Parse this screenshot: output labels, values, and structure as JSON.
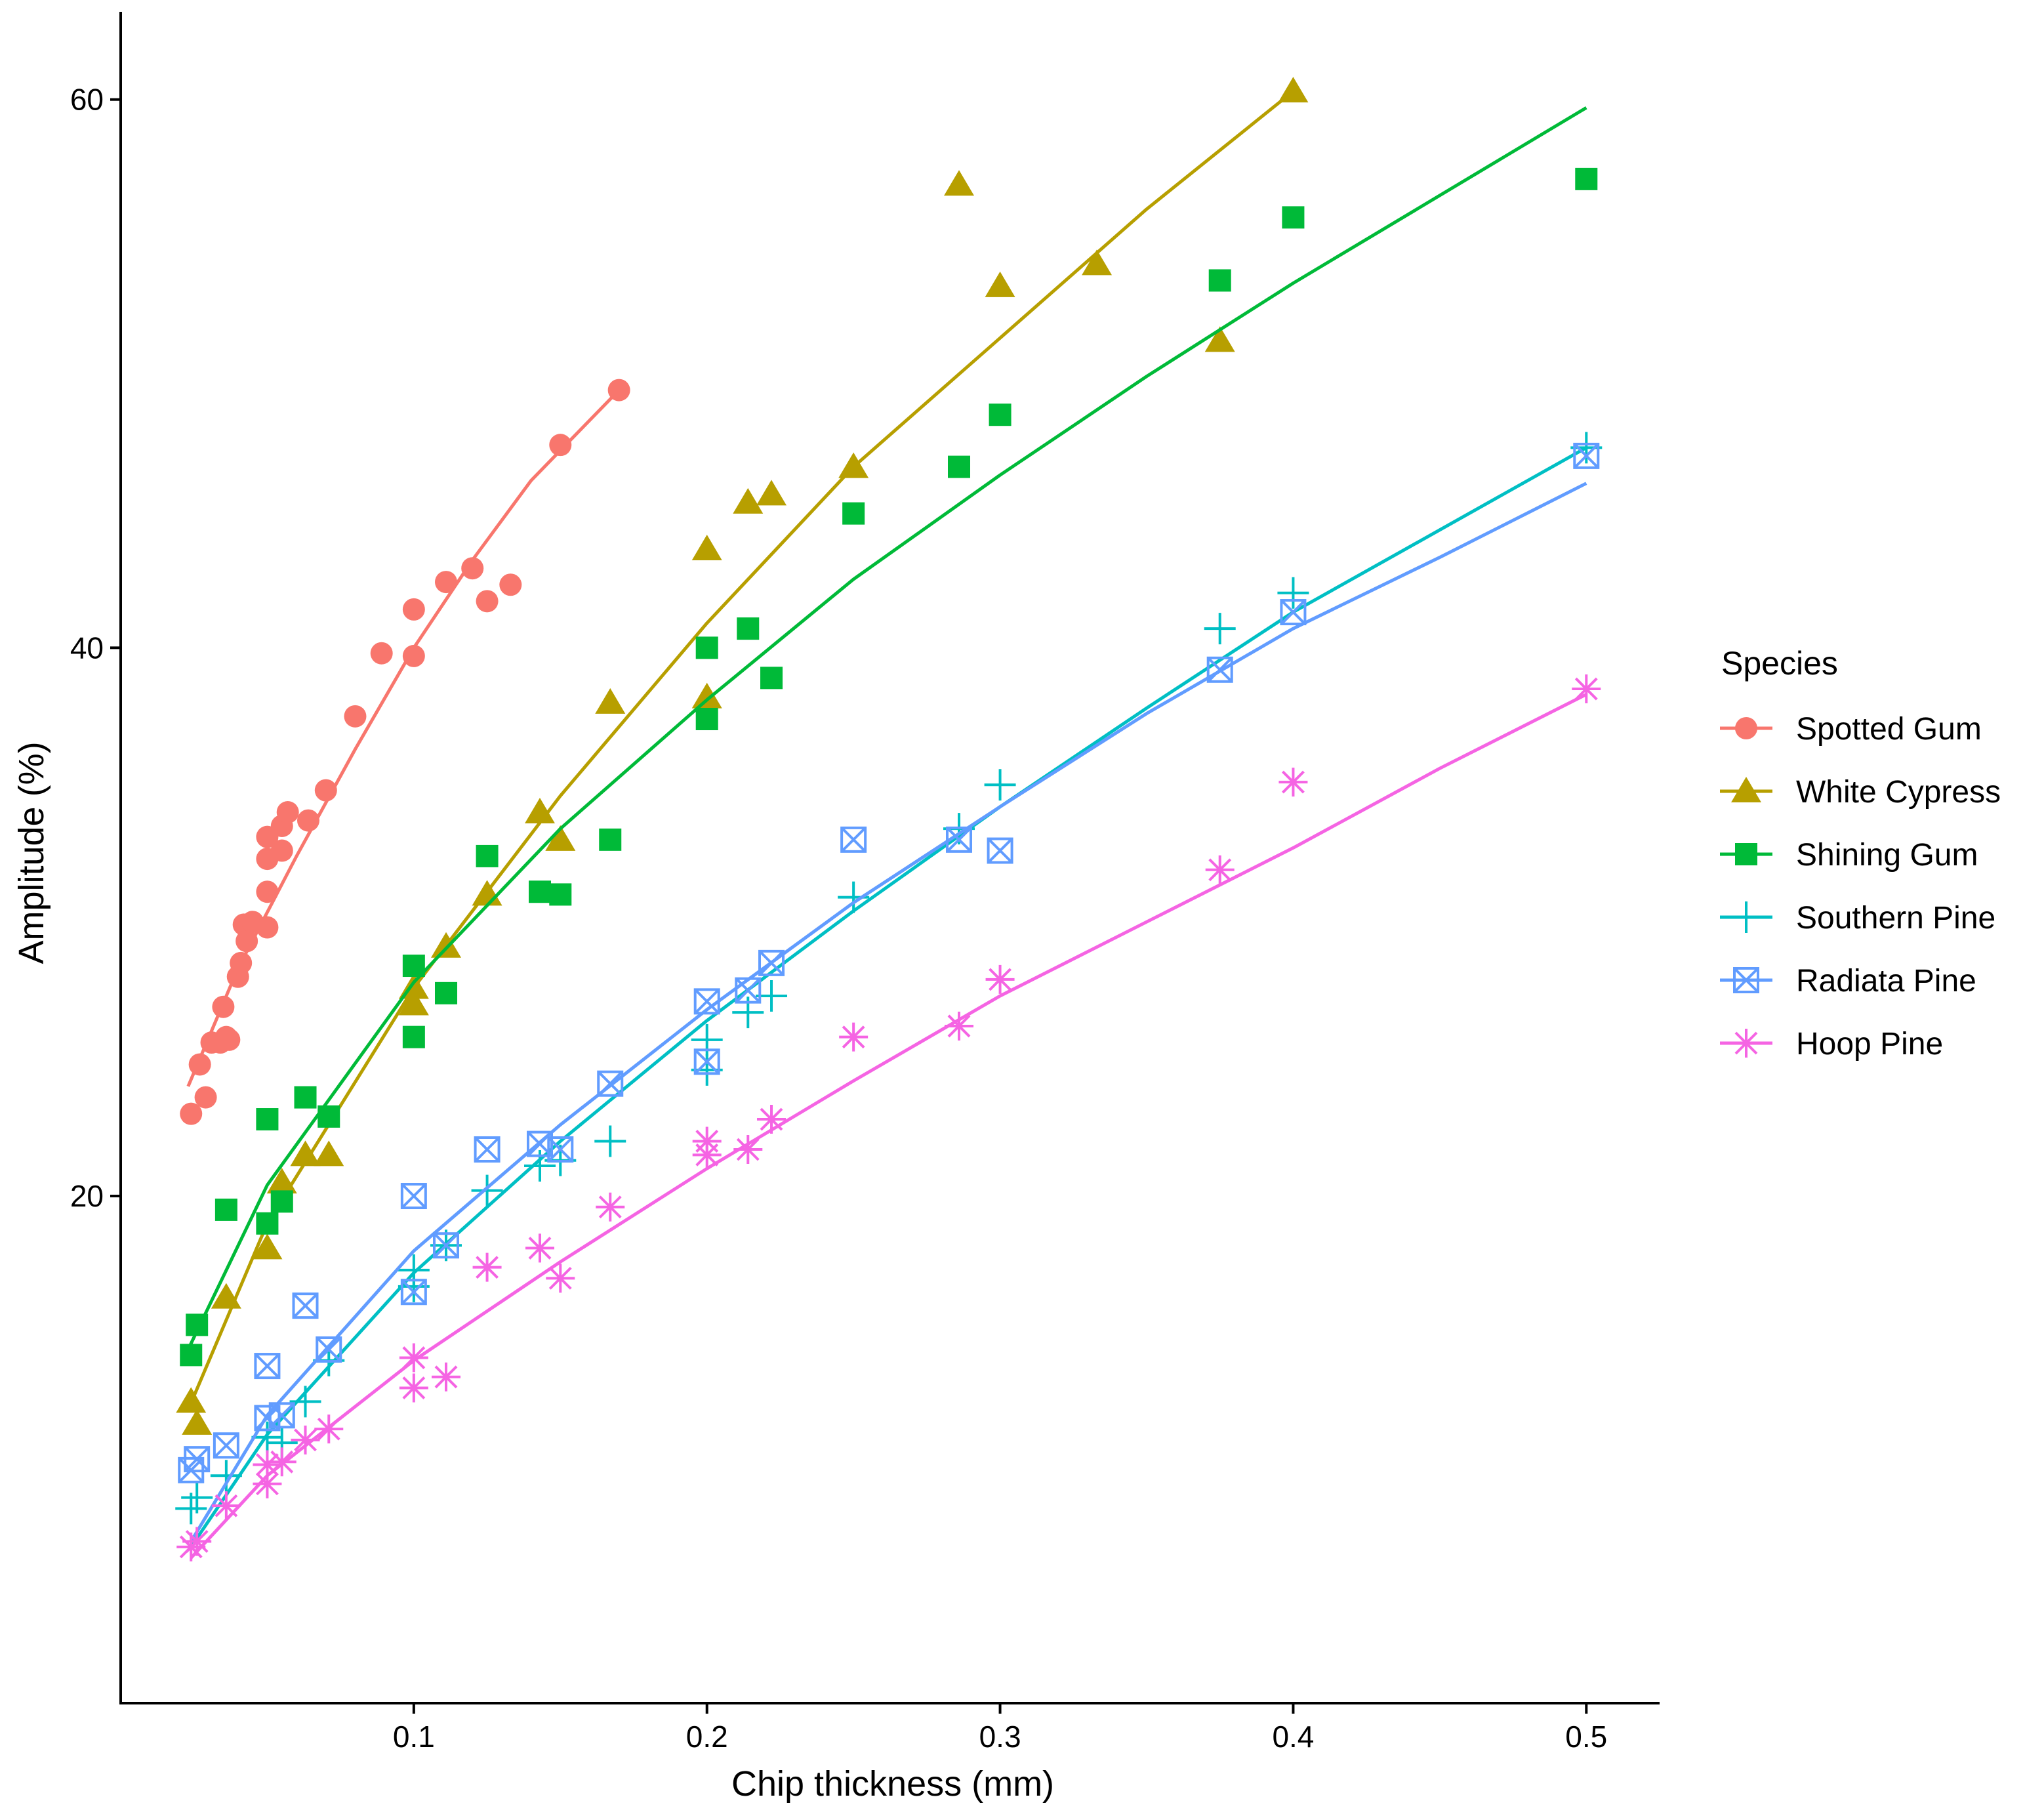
{
  "chart_data": {
    "type": "scatter",
    "xlabel": "Chip thickness (mm)",
    "ylabel": "Amplitude (%)",
    "xlim": [
      0.0,
      0.525
    ],
    "ylim": [
      1.5,
      63.2
    ],
    "xticks": [
      0.1,
      0.2,
      0.3,
      0.4,
      0.5
    ],
    "xtick_labels": [
      "0.1",
      "0.2",
      "0.3",
      "0.4",
      "0.5"
    ],
    "yticks": [
      20,
      40,
      60
    ],
    "ytick_labels": [
      "20",
      "40",
      "60"
    ],
    "grid": false,
    "legend_title": "Species",
    "legend_position": "right",
    "series": [
      {
        "name": "Spotted Gum",
        "color": "#F8766D",
        "marker": "circle",
        "points": [
          [
            0.024,
            23.0
          ],
          [
            0.027,
            24.8
          ],
          [
            0.029,
            23.6
          ],
          [
            0.031,
            25.6
          ],
          [
            0.034,
            25.6
          ],
          [
            0.035,
            26.9
          ],
          [
            0.036,
            25.8
          ],
          [
            0.037,
            25.7
          ],
          [
            0.04,
            28.0
          ],
          [
            0.041,
            28.5
          ],
          [
            0.042,
            29.9
          ],
          [
            0.043,
            29.3
          ],
          [
            0.045,
            30.0
          ],
          [
            0.05,
            29.8
          ],
          [
            0.05,
            31.1
          ],
          [
            0.05,
            32.3
          ],
          [
            0.05,
            33.1
          ],
          [
            0.055,
            32.6
          ],
          [
            0.055,
            33.5
          ],
          [
            0.057,
            34.0
          ],
          [
            0.064,
            33.7
          ],
          [
            0.07,
            34.8
          ],
          [
            0.08,
            37.5
          ],
          [
            0.089,
            39.8
          ],
          [
            0.1,
            39.7
          ],
          [
            0.1,
            41.4
          ],
          [
            0.111,
            42.4
          ],
          [
            0.12,
            42.9
          ],
          [
            0.125,
            41.7
          ],
          [
            0.133,
            42.3
          ],
          [
            0.15,
            47.4
          ],
          [
            0.17,
            49.4
          ]
        ],
        "fit": [
          [
            0.023,
            24.0
          ],
          [
            0.04,
            28.3
          ],
          [
            0.06,
            32.4
          ],
          [
            0.08,
            36.3
          ],
          [
            0.1,
            40.0
          ],
          [
            0.12,
            43.2
          ],
          [
            0.14,
            46.1
          ],
          [
            0.17,
            49.4
          ]
        ]
      },
      {
        "name": "White Cypress",
        "color": "#B79F00",
        "marker": "triangle",
        "points": [
          [
            0.024,
            12.5
          ],
          [
            0.026,
            11.7
          ],
          [
            0.036,
            16.3
          ],
          [
            0.05,
            18.1
          ],
          [
            0.055,
            20.5
          ],
          [
            0.063,
            21.5
          ],
          [
            0.071,
            21.5
          ],
          [
            0.1,
            27.0
          ],
          [
            0.1,
            27.6
          ],
          [
            0.111,
            29.1
          ],
          [
            0.125,
            31.0
          ],
          [
            0.143,
            34.0
          ],
          [
            0.15,
            33.0
          ],
          [
            0.167,
            38.0
          ],
          [
            0.2,
            38.2
          ],
          [
            0.2,
            43.6
          ],
          [
            0.214,
            45.3
          ],
          [
            0.222,
            45.6
          ],
          [
            0.25,
            46.6
          ],
          [
            0.286,
            56.9
          ],
          [
            0.3,
            53.2
          ],
          [
            0.333,
            54.0
          ],
          [
            0.375,
            51.2
          ],
          [
            0.4,
            60.3
          ]
        ],
        "fit": [
          [
            0.023,
            12.2
          ],
          [
            0.05,
            19.0
          ],
          [
            0.1,
            27.6
          ],
          [
            0.15,
            34.6
          ],
          [
            0.2,
            40.9
          ],
          [
            0.25,
            46.6
          ],
          [
            0.3,
            51.3
          ],
          [
            0.35,
            56.0
          ],
          [
            0.4,
            60.3
          ]
        ]
      },
      {
        "name": "Shining Gum",
        "color": "#00BA38",
        "marker": "square",
        "points": [
          [
            0.024,
            14.2
          ],
          [
            0.026,
            15.3
          ],
          [
            0.036,
            19.5
          ],
          [
            0.05,
            19.0
          ],
          [
            0.05,
            22.8
          ],
          [
            0.055,
            19.8
          ],
          [
            0.063,
            23.6
          ],
          [
            0.071,
            22.9
          ],
          [
            0.1,
            25.8
          ],
          [
            0.1,
            28.4
          ],
          [
            0.111,
            27.4
          ],
          [
            0.125,
            32.4
          ],
          [
            0.143,
            31.1
          ],
          [
            0.15,
            31.0
          ],
          [
            0.167,
            33.0
          ],
          [
            0.2,
            37.4
          ],
          [
            0.2,
            40.0
          ],
          [
            0.214,
            40.7
          ],
          [
            0.222,
            38.9
          ],
          [
            0.25,
            44.9
          ],
          [
            0.286,
            46.6
          ],
          [
            0.3,
            48.5
          ],
          [
            0.375,
            53.4
          ],
          [
            0.4,
            55.7
          ],
          [
            0.5,
            57.1
          ]
        ],
        "fit": [
          [
            0.023,
            14.4
          ],
          [
            0.05,
            20.4
          ],
          [
            0.1,
            27.8
          ],
          [
            0.15,
            33.4
          ],
          [
            0.2,
            38.1
          ],
          [
            0.25,
            42.5
          ],
          [
            0.3,
            46.3
          ],
          [
            0.35,
            49.9
          ],
          [
            0.4,
            53.3
          ],
          [
            0.45,
            56.5
          ],
          [
            0.5,
            59.7
          ]
        ]
      },
      {
        "name": "Southern Pine",
        "color": "#00BFC4",
        "marker": "plus",
        "points": [
          [
            0.024,
            8.6
          ],
          [
            0.026,
            9.0
          ],
          [
            0.036,
            9.8
          ],
          [
            0.05,
            11.2
          ],
          [
            0.055,
            11.0
          ],
          [
            0.063,
            12.5
          ],
          [
            0.071,
            14.0
          ],
          [
            0.1,
            16.7
          ],
          [
            0.1,
            17.3
          ],
          [
            0.111,
            18.2
          ],
          [
            0.125,
            20.2
          ],
          [
            0.143,
            21.1
          ],
          [
            0.15,
            21.3
          ],
          [
            0.167,
            22.0
          ],
          [
            0.2,
            24.6
          ],
          [
            0.2,
            25.7
          ],
          [
            0.214,
            26.7
          ],
          [
            0.222,
            27.3
          ],
          [
            0.25,
            30.9
          ],
          [
            0.286,
            33.4
          ],
          [
            0.3,
            35.0
          ],
          [
            0.375,
            40.7
          ],
          [
            0.4,
            42.0
          ],
          [
            0.5,
            47.3
          ]
        ],
        "fit": [
          [
            0.024,
            7.2
          ],
          [
            0.05,
            11.3
          ],
          [
            0.1,
            17.2
          ],
          [
            0.15,
            22.0
          ],
          [
            0.2,
            26.4
          ],
          [
            0.25,
            30.4
          ],
          [
            0.3,
            34.2
          ],
          [
            0.35,
            37.8
          ],
          [
            0.4,
            41.3
          ],
          [
            0.45,
            44.3
          ],
          [
            0.5,
            47.3
          ]
        ]
      },
      {
        "name": "Radiata Pine",
        "color": "#619CFF",
        "marker": "square-cross",
        "points": [
          [
            0.024,
            10.0
          ],
          [
            0.026,
            10.4
          ],
          [
            0.036,
            10.9
          ],
          [
            0.05,
            11.9
          ],
          [
            0.05,
            13.8
          ],
          [
            0.055,
            12.0
          ],
          [
            0.063,
            16.0
          ],
          [
            0.071,
            14.4
          ],
          [
            0.1,
            16.5
          ],
          [
            0.1,
            20.0
          ],
          [
            0.111,
            18.2
          ],
          [
            0.125,
            21.7
          ],
          [
            0.143,
            21.9
          ],
          [
            0.15,
            21.7
          ],
          [
            0.167,
            24.1
          ],
          [
            0.2,
            24.9
          ],
          [
            0.2,
            27.1
          ],
          [
            0.214,
            27.5
          ],
          [
            0.222,
            28.5
          ],
          [
            0.25,
            33.0
          ],
          [
            0.286,
            33.0
          ],
          [
            0.3,
            32.6
          ],
          [
            0.375,
            39.2
          ],
          [
            0.4,
            41.3
          ],
          [
            0.5,
            47.0
          ]
        ],
        "fit": [
          [
            0.024,
            7.4
          ],
          [
            0.05,
            12.0
          ],
          [
            0.1,
            18.0
          ],
          [
            0.15,
            22.6
          ],
          [
            0.2,
            26.8
          ],
          [
            0.25,
            30.7
          ],
          [
            0.3,
            34.2
          ],
          [
            0.35,
            37.6
          ],
          [
            0.4,
            40.7
          ],
          [
            0.45,
            43.3
          ],
          [
            0.5,
            46.0
          ]
        ]
      },
      {
        "name": "Hoop Pine",
        "color": "#F564E3",
        "marker": "asterisk",
        "points": [
          [
            0.024,
            7.2
          ],
          [
            0.026,
            7.4
          ],
          [
            0.036,
            8.7
          ],
          [
            0.05,
            9.5
          ],
          [
            0.05,
            10.2
          ],
          [
            0.055,
            10.3
          ],
          [
            0.063,
            11.1
          ],
          [
            0.071,
            11.5
          ],
          [
            0.1,
            13.0
          ],
          [
            0.1,
            14.1
          ],
          [
            0.111,
            13.4
          ],
          [
            0.125,
            17.4
          ],
          [
            0.143,
            18.1
          ],
          [
            0.15,
            17.0
          ],
          [
            0.167,
            19.6
          ],
          [
            0.2,
            21.5
          ],
          [
            0.2,
            22.0
          ],
          [
            0.214,
            21.7
          ],
          [
            0.222,
            22.8
          ],
          [
            0.25,
            25.8
          ],
          [
            0.286,
            26.2
          ],
          [
            0.3,
            27.9
          ],
          [
            0.375,
            31.9
          ],
          [
            0.4,
            35.1
          ],
          [
            0.5,
            38.5
          ]
        ],
        "fit": [
          [
            0.024,
            6.8
          ],
          [
            0.05,
            9.8
          ],
          [
            0.1,
            14.0
          ],
          [
            0.15,
            17.6
          ],
          [
            0.2,
            21.0
          ],
          [
            0.25,
            24.2
          ],
          [
            0.3,
            27.3
          ],
          [
            0.35,
            30.0
          ],
          [
            0.4,
            32.7
          ],
          [
            0.45,
            35.6
          ],
          [
            0.5,
            38.3
          ]
        ]
      }
    ]
  }
}
